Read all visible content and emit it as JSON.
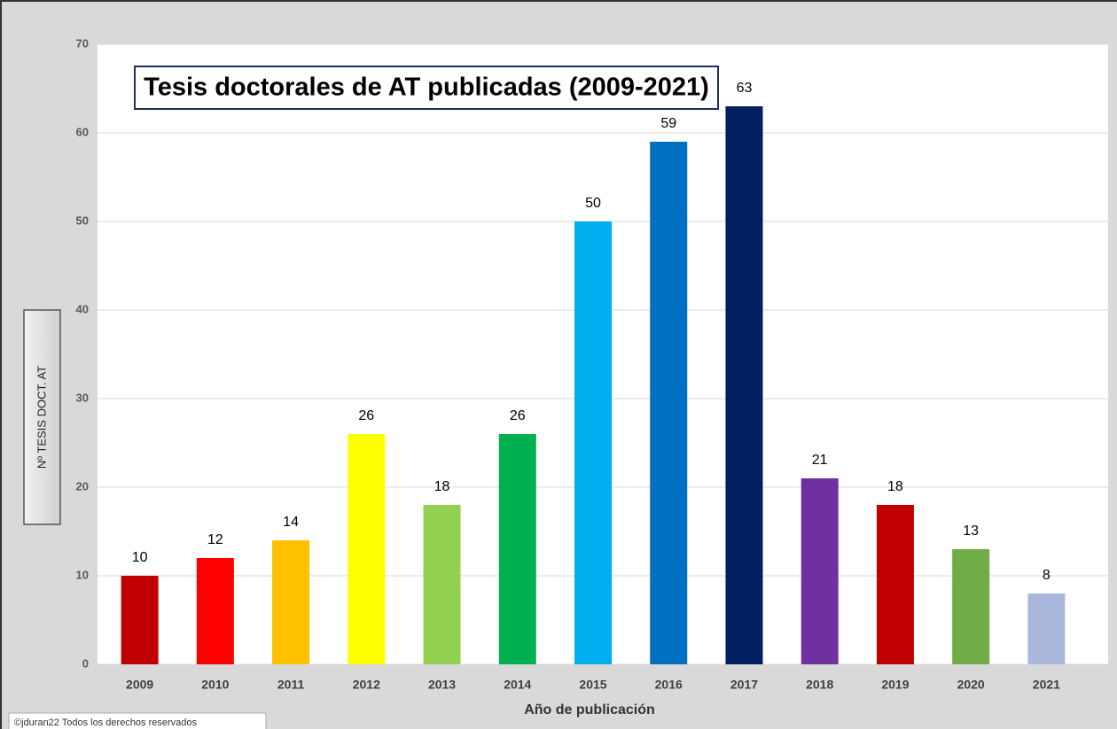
{
  "chart_data": {
    "type": "bar",
    "title": "Tesis doctorales de AT publicadas (2009-2021)",
    "y_label": "Nº TESIS DOCT. AT",
    "x_label": "Año de publicación",
    "copyright": "©jduran22 Todos los derechos reservados",
    "categories": [
      "2009",
      "2010",
      "2011",
      "2012",
      "2013",
      "2014",
      "2015",
      "2016",
      "2017",
      "2018",
      "2019",
      "2020",
      "2021"
    ],
    "values": [
      10,
      12,
      14,
      26,
      18,
      26,
      50,
      59,
      63,
      21,
      18,
      13,
      8
    ],
    "colors": [
      "#c00000",
      "#ff0000",
      "#ffc000",
      "#ffff00",
      "#92d050",
      "#00b050",
      "#00b0f0",
      "#0070c0",
      "#002060",
      "#7030a0",
      "#c00000",
      "#70ad47",
      "#a9b8dc"
    ],
    "ylim": [
      0,
      70
    ],
    "yticks": [
      0,
      10,
      20,
      30,
      40,
      50,
      60,
      70
    ],
    "grid": true
  }
}
